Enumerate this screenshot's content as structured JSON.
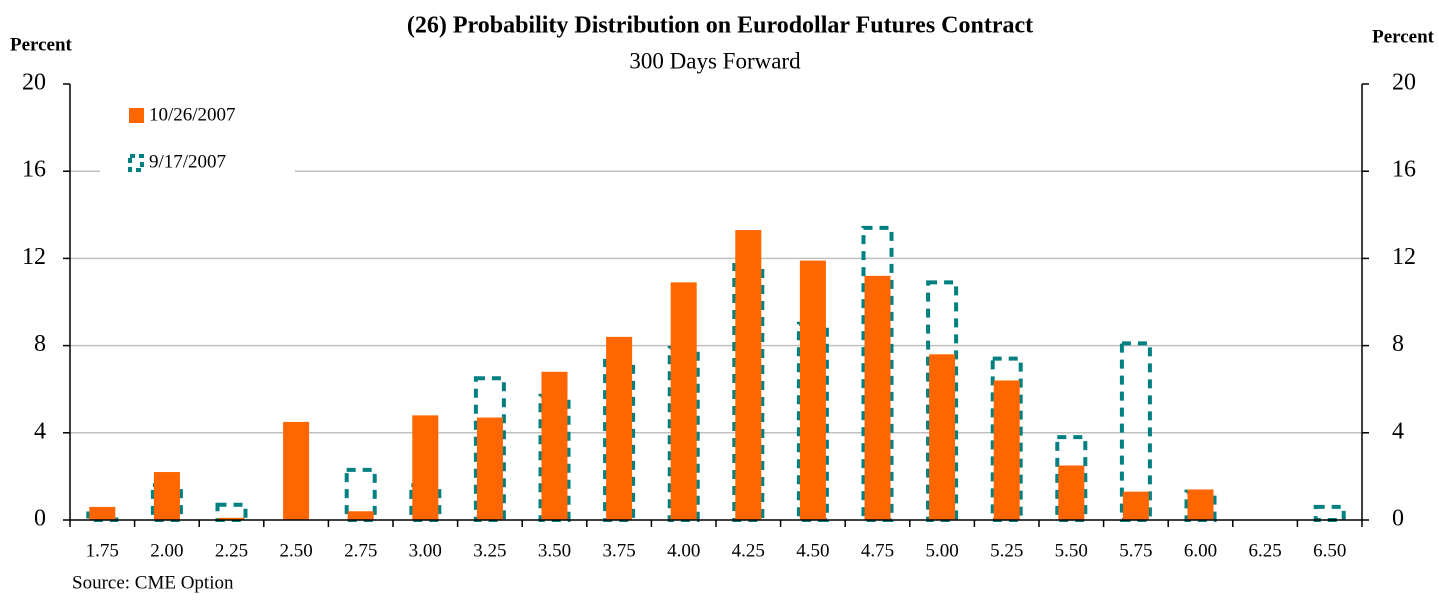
{
  "chart_data": {
    "type": "bar",
    "title": "(26) Probability Distribution on Eurodollar Futures Contract",
    "subtitle": "300 Days Forward",
    "y_label": "Percent",
    "y2_label": "Percent",
    "source": "Source: CME Option",
    "categories": [
      "1.75",
      "2.00",
      "2.25",
      "2.50",
      "2.75",
      "3.00",
      "3.25",
      "3.50",
      "3.75",
      "4.00",
      "4.25",
      "4.50",
      "4.75",
      "5.00",
      "5.25",
      "5.50",
      "5.75",
      "6.00",
      "6.25",
      "6.50"
    ],
    "series": [
      {
        "name": "10/26/2007",
        "color": "#ff6600",
        "style": "solid",
        "values": [
          0.6,
          2.2,
          0.1,
          4.5,
          0.4,
          4.8,
          4.7,
          6.8,
          8.4,
          10.9,
          13.3,
          11.9,
          11.2,
          7.6,
          6.4,
          2.5,
          1.3,
          1.4,
          0,
          0
        ]
      },
      {
        "name": "9/17/2007",
        "color": "#008080",
        "style": "dashed",
        "values": [
          0.3,
          1.6,
          0.7,
          0,
          2.3,
          1.6,
          6.5,
          5.7,
          7.3,
          7.9,
          11.7,
          9.0,
          13.4,
          10.9,
          7.4,
          3.8,
          8.1,
          1.3,
          0,
          0.6
        ]
      }
    ],
    "ylim": [
      0,
      20
    ],
    "yticks": [
      0,
      4,
      8,
      12,
      16,
      20
    ],
    "y2lim": [
      0,
      20
    ],
    "y2ticks": [
      0,
      4,
      8,
      12,
      16,
      20
    ],
    "grid": true,
    "legend": "top-left"
  }
}
